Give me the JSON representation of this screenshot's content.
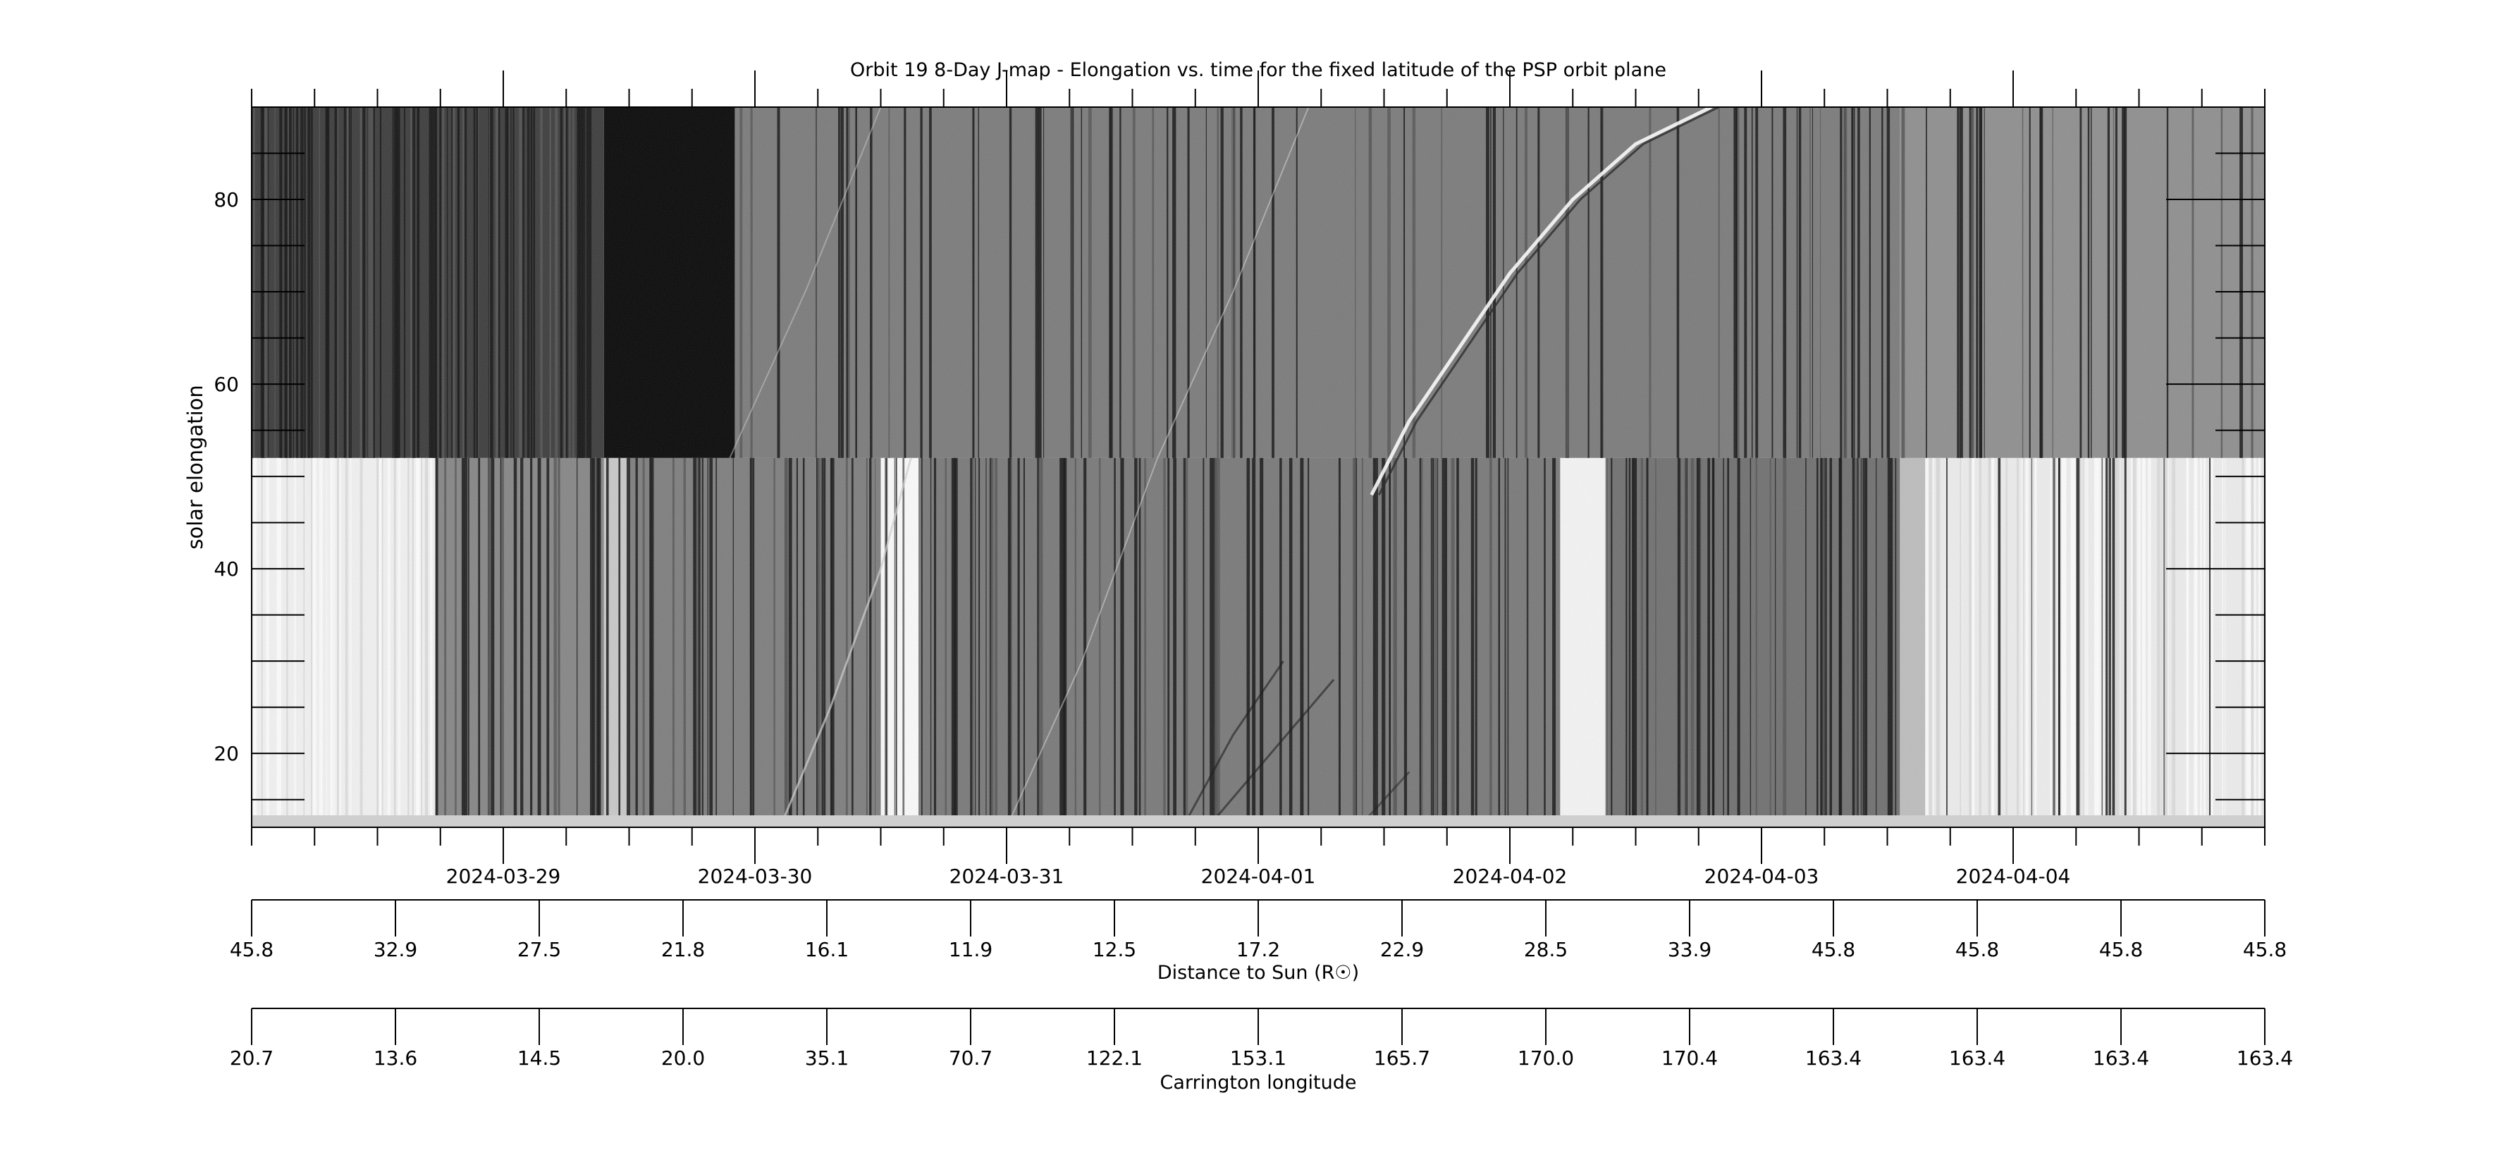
{
  "chart_data": {
    "type": "heatmap",
    "title": "Orbit 19 8-Day J-map - Elongation vs. time for the fixed latitude of the PSP orbit plane",
    "ylabel": "solar elongation",
    "ylim": [
      12,
      90
    ],
    "y_ticks": [
      20,
      40,
      60,
      80
    ],
    "y_minor_ticks": [
      15,
      25,
      30,
      35,
      45,
      50,
      55,
      65,
      70,
      75,
      85
    ],
    "x_range": [
      "2024-03-28T00:00",
      "2024-04-05T00:00"
    ],
    "x_ticks": [
      "2024-03-29",
      "2024-03-30",
      "2024-03-31",
      "2024-04-01",
      "2024-04-02",
      "2024-04-03",
      "2024-04-04"
    ],
    "x_minor_ticks_per_day": 4,
    "colormap": "grayscale",
    "panel_boundary_elongation": 52,
    "secondary_axes": [
      {
        "label": "Distance to Sun (R☉)",
        "tick_values": [
          "45.8",
          "32.9",
          "27.5",
          "21.8",
          "16.1",
          "11.9",
          "12.5",
          "17.2",
          "22.9",
          "28.5",
          "33.9",
          "45.8",
          "45.8",
          "45.8",
          "45.8"
        ]
      },
      {
        "label": "Carrington longitude",
        "tick_values": [
          "20.7",
          "13.6",
          "14.5",
          "20.0",
          "35.1",
          "70.7",
          "122.1",
          "153.1",
          "165.7",
          "170.0",
          "170.4",
          "163.4",
          "163.4",
          "163.4",
          "163.4"
        ]
      }
    ]
  }
}
